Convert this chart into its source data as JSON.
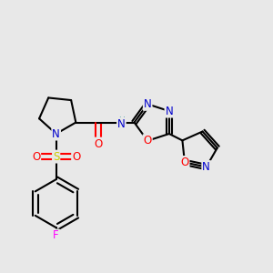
{
  "bg_color": "#e8e8e8",
  "bond_color": "#000000",
  "atom_colors": {
    "N": "#0000cc",
    "O": "#ff0000",
    "S": "#cccc00",
    "F": "#ff00ff",
    "H": "#008080",
    "C": "#000000"
  },
  "line_width": 1.5,
  "font_size": 8.5
}
